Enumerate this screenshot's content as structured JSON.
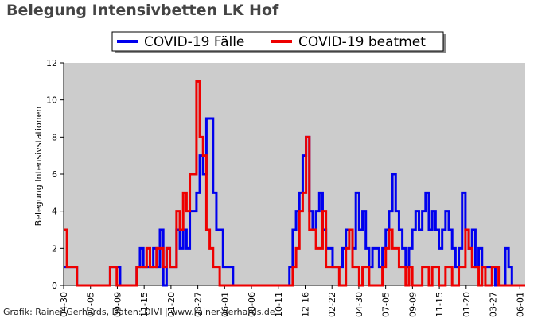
{
  "title": "Belegung Intensivbetten LK Hof",
  "footer": "Grafik: Rainer Gerhards, Daten: DIVI | www.rainer-gerhards.de",
  "chart_data": {
    "type": "line",
    "ylabel": "Belegung Intensivstationen",
    "ylim": [
      0,
      12
    ],
    "yticks": [
      0,
      2,
      4,
      6,
      8,
      10,
      12
    ],
    "grid": false,
    "legend_position": "top-center",
    "background_color": "#cccccc",
    "xticks": [
      "04-30",
      "07-05",
      "09-09",
      "11-15",
      "01-20",
      "03-27",
      "06-01",
      "08-06",
      "10-11",
      "12-16",
      "02-22",
      "04-30",
      "07-05",
      "09-09",
      "11-15",
      "01-20",
      "03-27",
      "06-01"
    ],
    "x_count": 140,
    "series": [
      {
        "name": "COVID-19 Fälle",
        "color": "#0000ee",
        "values": [
          1,
          1,
          1,
          1,
          0,
          0,
          0,
          0,
          0,
          0,
          0,
          0,
          0,
          0,
          1,
          1,
          1,
          0,
          0,
          0,
          0,
          0,
          1,
          2,
          1,
          1,
          1,
          2,
          1,
          3,
          0,
          2,
          1,
          1,
          3,
          2,
          3,
          2,
          4,
          4,
          5,
          7,
          6,
          9,
          9,
          5,
          3,
          3,
          1,
          1,
          1,
          0,
          0,
          0,
          0,
          0,
          0,
          0,
          0,
          0,
          0,
          0,
          0,
          0,
          0,
          0,
          0,
          0,
          1,
          3,
          4,
          5,
          7,
          8,
          4,
          3,
          4,
          5,
          3,
          2,
          2,
          1,
          1,
          1,
          2,
          3,
          3,
          2,
          5,
          3,
          4,
          2,
          1,
          2,
          2,
          1,
          2,
          3,
          4,
          6,
          4,
          3,
          2,
          1,
          2,
          3,
          4,
          3,
          4,
          5,
          3,
          4,
          3,
          2,
          3,
          4,
          3,
          2,
          1,
          2,
          5,
          3,
          2,
          3,
          1,
          2,
          1,
          1,
          1,
          1,
          0,
          0,
          0,
          2,
          1,
          0,
          0,
          0,
          0,
          0
        ],
        "spikes": [
          0,
          0,
          0,
          0,
          0,
          0,
          0,
          0,
          0,
          0,
          0,
          0,
          0,
          0,
          0,
          0,
          0,
          0,
          0,
          0,
          0,
          0,
          0,
          0,
          0,
          0,
          0,
          0,
          0,
          0,
          0,
          0,
          0,
          0,
          0,
          0,
          0,
          0,
          0,
          0,
          0,
          0,
          0,
          0,
          0,
          0,
          0,
          0,
          0,
          0,
          0,
          0,
          0,
          0,
          0,
          0,
          0,
          0,
          0,
          0,
          0,
          0,
          0,
          0,
          0,
          0,
          0,
          0,
          0,
          0,
          0,
          0,
          0,
          0,
          0,
          0,
          0,
          0,
          0,
          0,
          0,
          0,
          0,
          0,
          0,
          0,
          0,
          0,
          0,
          0,
          0,
          0,
          0,
          0,
          0,
          0,
          0,
          0,
          0,
          0,
          0,
          0,
          0,
          0,
          0,
          0,
          0,
          0,
          0,
          0,
          0,
          0,
          0,
          0,
          0,
          0,
          0,
          0,
          0,
          0,
          0,
          0,
          0,
          0,
          0,
          0,
          0,
          0,
          0,
          0,
          0,
          0,
          0,
          0,
          0,
          0,
          0,
          0,
          0,
          0
        ]
      },
      {
        "name": "COVID-19 beatmet",
        "color": "#ee0000",
        "values": [
          3,
          1,
          1,
          1,
          0,
          0,
          0,
          0,
          0,
          0,
          0,
          0,
          0,
          0,
          1,
          1,
          0,
          0,
          0,
          0,
          0,
          0,
          1,
          1,
          1,
          2,
          1,
          1,
          2,
          2,
          1,
          2,
          1,
          1,
          4,
          3,
          5,
          4,
          6,
          6,
          11,
          8,
          7,
          3,
          2,
          1,
          1,
          0,
          0,
          0,
          0,
          0,
          0,
          0,
          0,
          0,
          0,
          0,
          0,
          0,
          0,
          0,
          0,
          0,
          0,
          0,
          0,
          0,
          0,
          1,
          2,
          4,
          5,
          8,
          3,
          3,
          2,
          2,
          4,
          1,
          1,
          1,
          1,
          0,
          0,
          2,
          3,
          1,
          1,
          0,
          1,
          1,
          0,
          0,
          0,
          0,
          1,
          2,
          3,
          2,
          2,
          1,
          1,
          0,
          1,
          0,
          0,
          0,
          1,
          1,
          0,
          1,
          1,
          0,
          0,
          1,
          1,
          0,
          0,
          1,
          1,
          3,
          2,
          1,
          1,
          0,
          1,
          0,
          0,
          1,
          1,
          0,
          0,
          0,
          0,
          0,
          0,
          0,
          0,
          0
        ]
      }
    ]
  }
}
